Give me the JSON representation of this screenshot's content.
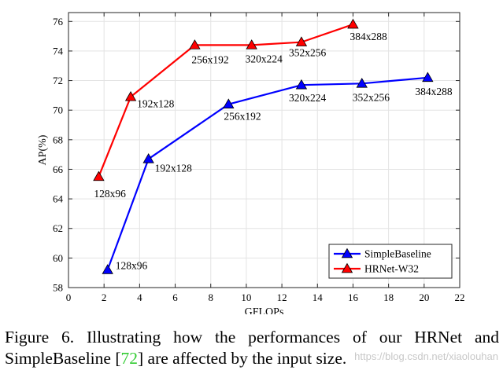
{
  "chart_data": {
    "type": "line",
    "xlabel": "GFLOPs",
    "ylabel": "AP(%)",
    "xlim": [
      0,
      22
    ],
    "ylim": [
      58,
      76.6
    ],
    "xticks": [
      0,
      2,
      4,
      6,
      8,
      10,
      12,
      14,
      16,
      18,
      20,
      22
    ],
    "yticks": [
      58,
      60,
      62,
      64,
      66,
      68,
      70,
      72,
      74,
      76
    ],
    "grid": true,
    "legend_position": "bottom-right",
    "series": [
      {
        "name": "SimpleBaseline",
        "color": "#0000ff",
        "marker": "triangle",
        "x": [
          2.2,
          4.5,
          9.0,
          13.1,
          16.5,
          20.2
        ],
        "y": [
          59.2,
          66.7,
          70.4,
          71.7,
          71.8,
          72.2
        ],
        "labels": [
          "128x96",
          "192x128",
          "256x192",
          "320x224",
          "352x256",
          "384x288"
        ]
      },
      {
        "name": "HRNet-W32",
        "color": "#ff0000",
        "marker": "triangle",
        "x": [
          1.7,
          3.5,
          7.1,
          10.3,
          13.1,
          16.0
        ],
        "y": [
          65.5,
          70.9,
          74.4,
          74.4,
          74.6,
          75.8
        ],
        "labels": [
          "128x96",
          "192x128",
          "256x192",
          "320x224",
          "352x256",
          "384x288"
        ]
      }
    ]
  },
  "caption": {
    "line1": "Figure 6. Illustrating how the performances of our HRNet and",
    "line2_prefix": "SimpleBaseline [",
    "line2_cite": "72",
    "line2_suffix": "] are affected by the input size."
  },
  "watermark": "https://blog.csdn.net/xiaolouhan"
}
